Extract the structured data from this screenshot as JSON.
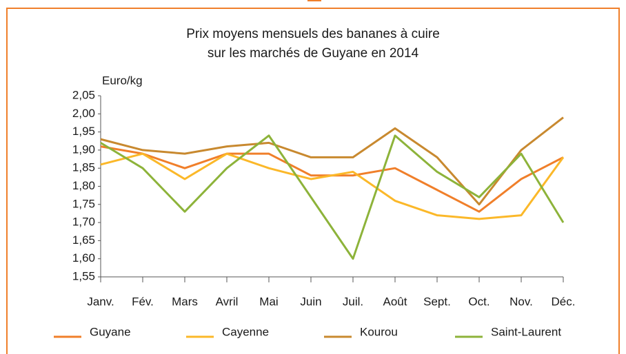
{
  "chart_data": {
    "type": "line",
    "title": [
      "Prix moyens mensuels des bananes à cuire",
      "sur les marchés de Guyane en 2014"
    ],
    "y_label": "Euro/kg",
    "categories": [
      "Janv.",
      "Fév.",
      "Mars",
      "Avril",
      "Mai",
      "Juin",
      "Juil.",
      "Août",
      "Sept.",
      "Oct.",
      "Nov.",
      "Déc."
    ],
    "series": [
      {
        "name": "Guyane",
        "color": "#f07f2a",
        "values": [
          1.91,
          1.89,
          1.85,
          1.89,
          1.89,
          1.83,
          1.83,
          1.85,
          1.79,
          1.73,
          1.82,
          1.88
        ]
      },
      {
        "name": "Cayenne",
        "color": "#fbb829",
        "values": [
          1.86,
          1.89,
          1.82,
          1.89,
          1.85,
          1.82,
          1.84,
          1.76,
          1.72,
          1.71,
          1.72,
          1.88
        ]
      },
      {
        "name": "Kourou",
        "color": "#c8892f",
        "values": [
          1.93,
          1.9,
          1.89,
          1.91,
          1.92,
          1.88,
          1.88,
          1.96,
          1.88,
          1.75,
          1.9,
          1.99
        ]
      },
      {
        "name": "Saint-Laurent",
        "color": "#8db33a",
        "values": [
          1.92,
          1.85,
          1.73,
          1.85,
          1.94,
          1.77,
          1.6,
          1.94,
          1.84,
          1.77,
          1.89,
          1.7
        ]
      }
    ],
    "ylim": [
      1.55,
      2.05
    ],
    "yticks": [
      {
        "value": 1.55,
        "label": "1,55"
      },
      {
        "value": 1.6,
        "label": "1,60"
      },
      {
        "value": 1.65,
        "label": "1,65"
      },
      {
        "value": 1.7,
        "label": "1,70"
      },
      {
        "value": 1.75,
        "label": "1,75"
      },
      {
        "value": 1.8,
        "label": "1,80"
      },
      {
        "value": 1.85,
        "label": "1,85"
      },
      {
        "value": 1.9,
        "label": "1,90"
      },
      {
        "value": 1.95,
        "label": "1,95"
      },
      {
        "value": 2.0,
        "label": "2,00"
      },
      {
        "value": 2.05,
        "label": "2,05"
      }
    ],
    "grid": false,
    "legend": "bottom"
  }
}
